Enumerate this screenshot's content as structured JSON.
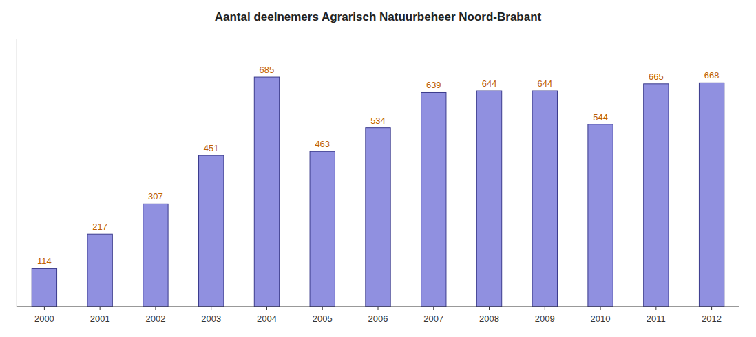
{
  "chart_data": {
    "type": "bar",
    "title": "Aantal deelnemers Agrarisch Natuurbeheer Noord-Brabant",
    "categories": [
      "2000",
      "2001",
      "2002",
      "2003",
      "2004",
      "2005",
      "2006",
      "2007",
      "2008",
      "2009",
      "2010",
      "2011",
      "2012"
    ],
    "values": [
      114,
      217,
      307,
      451,
      685,
      463,
      534,
      639,
      644,
      644,
      544,
      665,
      668
    ],
    "color": "#9090e0",
    "ylim": [
      0,
      800
    ],
    "grid": false,
    "data_labels": true,
    "tick_labels": "x"
  }
}
